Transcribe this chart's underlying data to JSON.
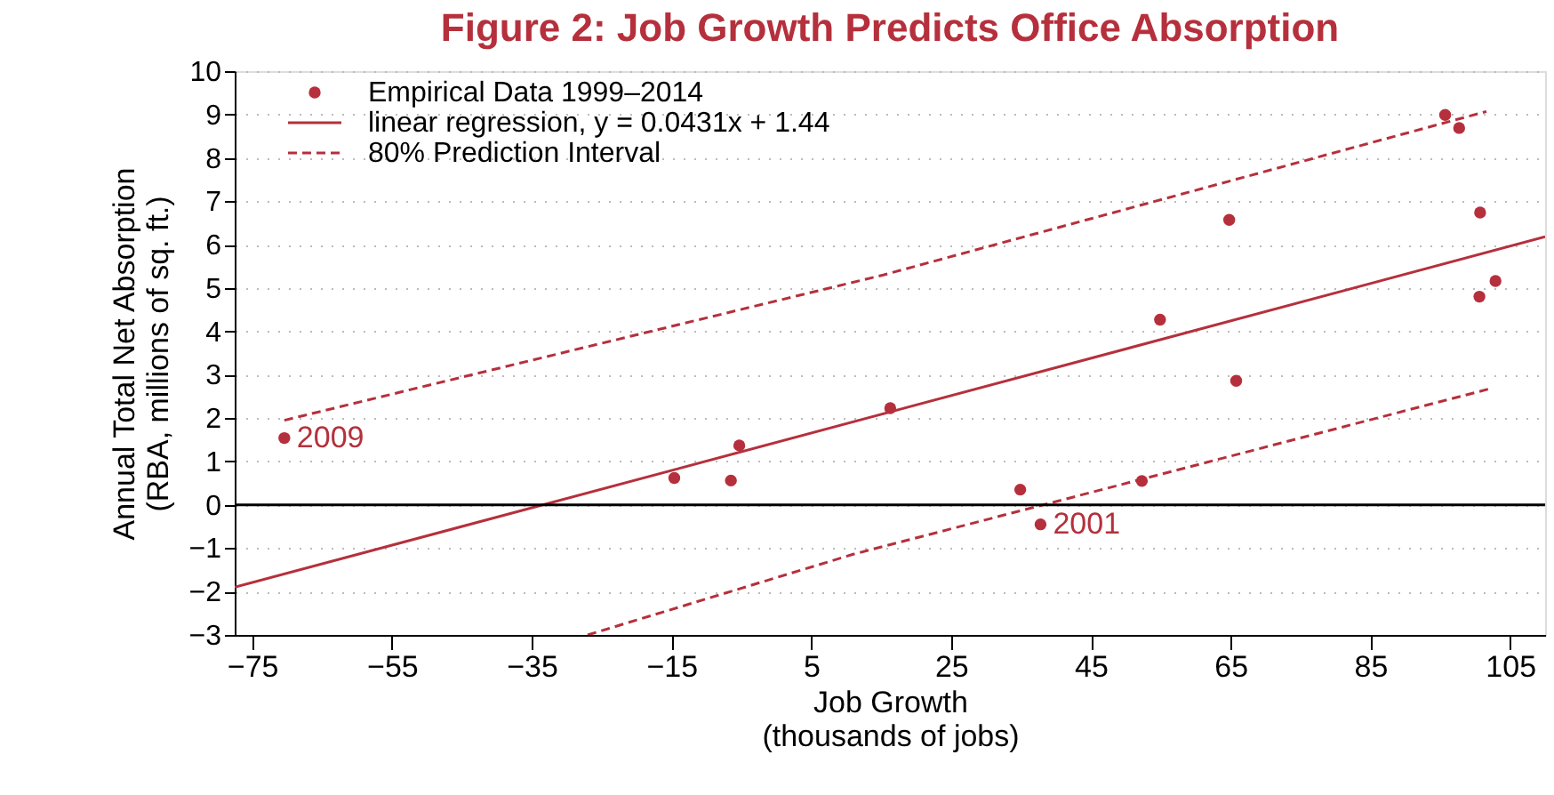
{
  "chart_data": {
    "type": "scatter",
    "title": "Figure 2: Job Growth Predicts Office Absorption",
    "xlabel": "Job Growth\n(thousands of jobs)",
    "ylabel": "Annual Total Net Absorption\n(RBA, millions of sq. ft.)",
    "series": [
      {
        "name": "Empirical Data 1999–2014",
        "type": "scatter",
        "color": "#b5303c",
        "marker": "circle",
        "x": [
          -70.4,
          -14.6,
          -6.5,
          -5.3,
          16.3,
          34.9,
          37.8,
          52.3,
          54.9,
          64.8,
          65.8,
          95.7,
          97.7,
          100.7,
          100.6,
          102.9
        ],
        "values": [
          1.54,
          0.62,
          0.56,
          1.37,
          2.23,
          0.35,
          -0.45,
          0.55,
          4.27,
          6.57,
          2.86,
          8.99,
          8.69,
          6.74,
          4.8,
          5.16
        ]
      },
      {
        "name": "linear regression, y = 0.0431x + 1.44",
        "type": "line",
        "color": "#b5303c",
        "line_style": "solid",
        "x": [
          -77.5,
          110
        ],
        "values": [
          -1.9,
          6.18
        ]
      },
      {
        "name": "80% Prediction Interval",
        "type": "line",
        "color": "#b5303c",
        "line_style": "dashed",
        "x": [
          -70.4,
          15.3,
          101.6
        ],
        "values": [
          1.95,
          5.3,
          9.07
        ]
      },
      {
        "type": "line",
        "color": "#b5303c",
        "line_style": "dashed",
        "x": [
          -27,
          11,
          102.4
        ],
        "values": [
          -3,
          -1.14,
          2.69
        ]
      }
    ],
    "annotations": [
      {
        "text": "2009",
        "x": -70.4,
        "y": 1.54
      },
      {
        "text": "2001",
        "x": 37.8,
        "y": -0.45
      }
    ],
    "ref_lines": [
      {
        "axis": "y",
        "value": 0,
        "color": "#000000",
        "line_style": "solid"
      }
    ],
    "xlim": [
      -77.5,
      110
    ],
    "xticks": [
      -75,
      -55,
      -35,
      -15,
      5,
      25,
      45,
      65,
      85,
      105
    ],
    "ylim": [
      -3,
      10
    ],
    "yticks": [
      -3,
      -2,
      -1,
      0,
      1,
      2,
      3,
      4,
      5,
      6,
      7,
      8,
      9,
      10
    ],
    "grid": "y",
    "legend": "top left"
  }
}
